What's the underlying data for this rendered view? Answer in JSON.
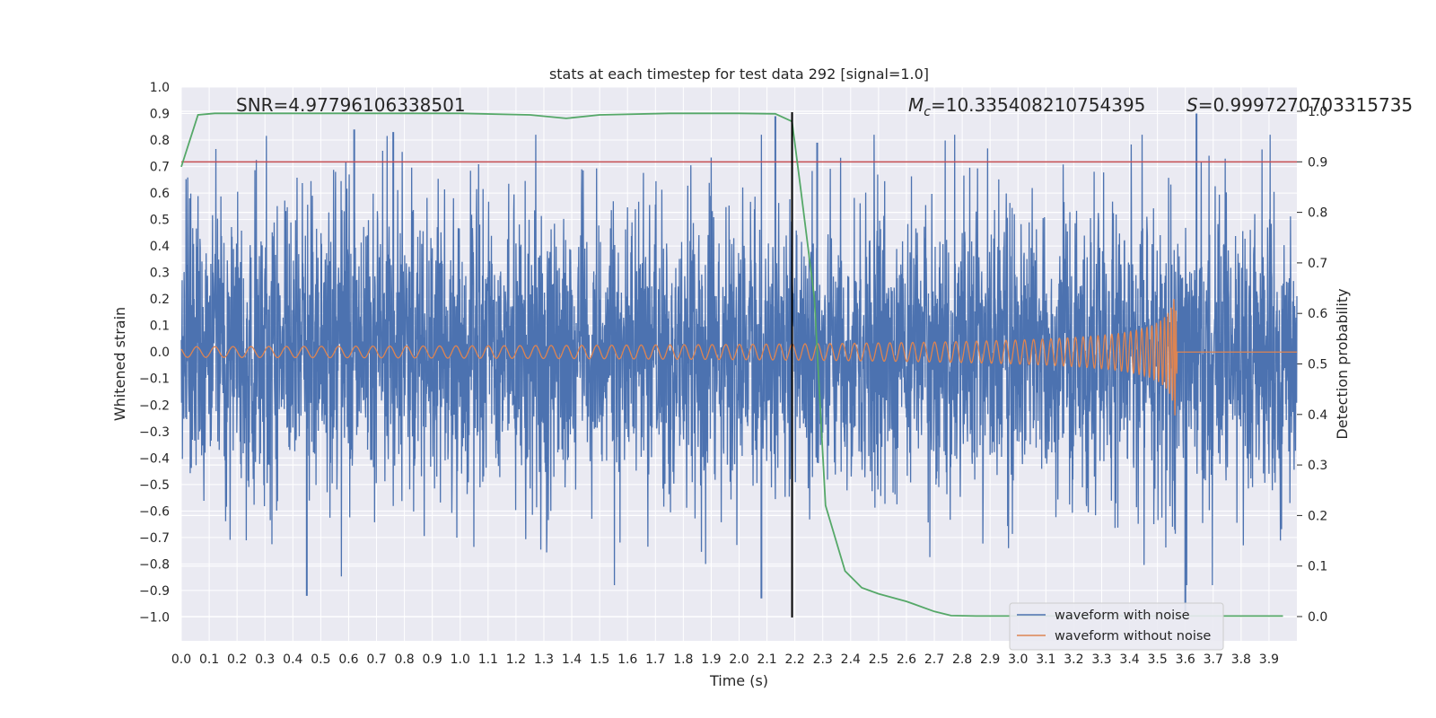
{
  "chart_data": {
    "type": "line",
    "title": "stats at each timestep for test data 292 [signal=1.0]",
    "xlabel": "Time (s)",
    "ylabel": "Whitened strain",
    "y2label": "Detection probability",
    "xlim": [
      0.0,
      4.0
    ],
    "ylim": [
      -1.09,
      1.0
    ],
    "y2lim": [
      -0.048,
      1.048
    ],
    "xticks": [
      0.0,
      0.1,
      0.2,
      0.3,
      0.4,
      0.5,
      0.6,
      0.7,
      0.8,
      0.9,
      1.0,
      1.1,
      1.2,
      1.3,
      1.4,
      1.5,
      1.6,
      1.7,
      1.8,
      1.9,
      2.0,
      2.1,
      2.2,
      2.3,
      2.4,
      2.5,
      2.6,
      2.7,
      2.8,
      2.9,
      3.0,
      3.1,
      3.2,
      3.3,
      3.4,
      3.5,
      3.6,
      3.7,
      3.8,
      3.9
    ],
    "yticks": [
      1.0,
      0.9,
      0.8,
      0.7,
      0.6,
      0.5,
      0.4,
      0.3,
      0.2,
      0.1,
      0.0,
      -0.1,
      -0.2,
      -0.3,
      -0.4,
      -0.5,
      -0.6,
      -0.7,
      -0.8,
      -0.9,
      -1.0
    ],
    "y2ticks": [
      1.0,
      0.9,
      0.8,
      0.7,
      0.6,
      0.5,
      0.4,
      0.3,
      0.2,
      0.1,
      0.0
    ],
    "annotations": {
      "snr": "SNR=4.97796106338501",
      "mc_symbol": "M",
      "mc_sub": "c",
      "mc_value": "=10.335408210754395",
      "s_symbol": "S",
      "s_value": "=0.9997270703315735"
    },
    "colors": {
      "noise": "#4c72b0",
      "clean": "#dd8452",
      "probability": "#55a868",
      "threshold": "#c44e52",
      "marker": "#000000",
      "background": "#eaeaf2",
      "grid": "#ffffff"
    },
    "threshold": 0.9,
    "marker_time": 2.19,
    "merger_time": 3.57,
    "noise_sigma": 0.27,
    "noise_spikes": [
      {
        "x": 0.45,
        "y": -0.92
      },
      {
        "x": 0.62,
        "y": 0.84
      },
      {
        "x": 0.76,
        "y": 0.83
      },
      {
        "x": 2.13,
        "y": 0.89
      },
      {
        "x": 2.28,
        "y": 0.79
      },
      {
        "x": 3.64,
        "y": 0.9
      },
      {
        "x": 3.6,
        "y": -0.98
      },
      {
        "x": 2.08,
        "y": -0.93
      }
    ],
    "series": [
      {
        "name": "waveform with noise",
        "kind": "noise"
      },
      {
        "name": "waveform without noise",
        "kind": "chirp"
      },
      {
        "name": "detection probability",
        "kind": "probability",
        "x": [
          0.0,
          0.06,
          0.12,
          0.25,
          0.5,
          0.75,
          1.0,
          1.25,
          1.38,
          1.5,
          1.75,
          2.0,
          2.13,
          2.19,
          2.22,
          2.27,
          2.31,
          2.38,
          2.44,
          2.5,
          2.6,
          2.7,
          2.76,
          2.85,
          3.0,
          3.5,
          3.95
        ],
        "y": [
          0.89,
          0.993,
          0.996,
          0.996,
          0.996,
          0.996,
          0.996,
          0.993,
          0.986,
          0.993,
          0.996,
          0.996,
          0.995,
          0.98,
          0.85,
          0.63,
          0.22,
          0.09,
          0.057,
          0.045,
          0.03,
          0.01,
          0.002,
          0.001,
          0.001,
          0.001,
          0.001
        ]
      }
    ],
    "legend": {
      "position": "lower right",
      "entries": [
        "waveform with noise",
        "waveform without noise"
      ]
    }
  }
}
